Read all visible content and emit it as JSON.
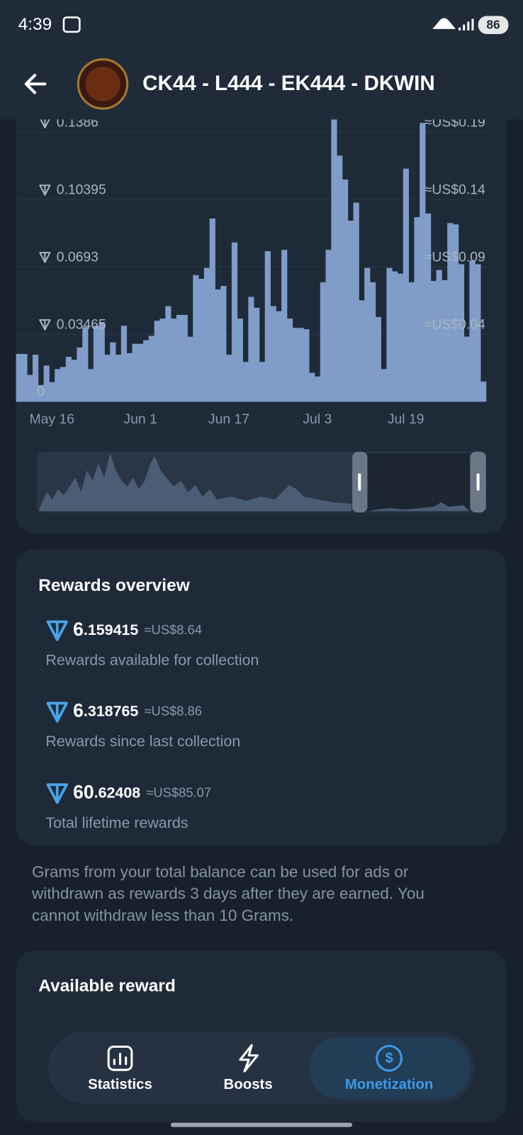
{
  "status_bar": {
    "time": "4:39",
    "battery": "86"
  },
  "header": {
    "title": "CK44 - L444 - EK444 - DKWIN"
  },
  "chart_data": {
    "type": "bar",
    "color": "#7f9dc8",
    "grid": true,
    "categories": [
      null,
      null,
      null,
      null,
      null,
      null,
      "May 16",
      null,
      null,
      null,
      null,
      null,
      null,
      null,
      null,
      null,
      null,
      null,
      null,
      null,
      null,
      null,
      "Jun 1",
      null,
      null,
      null,
      null,
      null,
      null,
      null,
      null,
      null,
      null,
      null,
      null,
      null,
      null,
      null,
      "Jun 17",
      null,
      null,
      null,
      null,
      null,
      null,
      null,
      null,
      null,
      null,
      null,
      null,
      null,
      null,
      null,
      "Jul 3",
      null,
      null,
      null,
      null,
      null,
      null,
      null,
      null,
      null,
      null,
      null,
      null,
      null,
      null,
      null,
      "Jul 19",
      null,
      null,
      null,
      null,
      null,
      null,
      null,
      null,
      null,
      null,
      null,
      null,
      null,
      null
    ],
    "values": [
      0.0246,
      0.0246,
      0.0138,
      0.0242,
      0.0086,
      0.0186,
      0.0101,
      0.0168,
      0.0179,
      0.0231,
      0.0216,
      0.0279,
      0.0384,
      0.0168,
      0.0391,
      0.041,
      0.0242,
      0.0306,
      0.0242,
      0.0391,
      0.025,
      0.0298,
      0.0298,
      0.0317,
      0.0339,
      0.0417,
      0.0428,
      0.0492,
      0.0428,
      0.0447,
      0.0447,
      0.0335,
      0.0652,
      0.0633,
      0.0689,
      0.0943,
      0.0578,
      0.0596,
      0.0242,
      0.082,
      0.0428,
      0.0205,
      0.054,
      0.0484,
      0.0205,
      0.0775,
      0.0492,
      0.0466,
      0.0782,
      0.0428,
      0.038,
      0.038,
      0.0373,
      0.0149,
      0.013,
      0.0615,
      0.0782,
      0.1453,
      0.1267,
      0.1144,
      0.0932,
      0.1025,
      0.0522,
      0.0689,
      0.0615,
      0.0436,
      0.0168,
      0.0689,
      0.0671,
      0.0659,
      0.12,
      0.0615,
      0.095,
      0.1435,
      0.0969,
      0.0622,
      0.0678,
      0.0626,
      0.092,
      0.0913,
      0.0708,
      0.0335,
      0.0727,
      0.0708,
      0.0104
    ],
    "ylim": [
      0,
      0.15
    ],
    "yticks": [
      0,
      0.03465,
      0.0693,
      0.10395,
      0.1386
    ],
    "y2lim": [
      -0.01,
      0.2065
    ],
    "y2ticks": [
      {
        "value": 0.04,
        "label": "≈US$0.04"
      },
      {
        "value": 0.09,
        "label": "≈US$0.09"
      },
      {
        "value": 0.14,
        "label": "≈US$0.14"
      },
      {
        "value": 0.19,
        "label": "≈US$0.19"
      }
    ]
  },
  "rewards_overview": {
    "title": "Rewards overview",
    "items": [
      {
        "whole": "6",
        "fraction": ".159415",
        "usd": "≈US$8.64",
        "caption": "Rewards available for collection"
      },
      {
        "whole": "6",
        "fraction": ".318765",
        "usd": "≈US$8.86",
        "caption": "Rewards since last collection"
      },
      {
        "whole": "60",
        "fraction": ".62408",
        "usd": "≈US$85.07",
        "caption": "Total lifetime rewards"
      }
    ]
  },
  "footnote": [
    "Grams from your total balance can be used for ads or",
    "withdrawn as rewards 3 days after they are earned. You",
    "cannot withdraw less than 10 Grams."
  ],
  "available_reward": {
    "title": "Available reward"
  },
  "tabs": [
    "Statistics",
    "Boosts",
    "Monetization"
  ]
}
